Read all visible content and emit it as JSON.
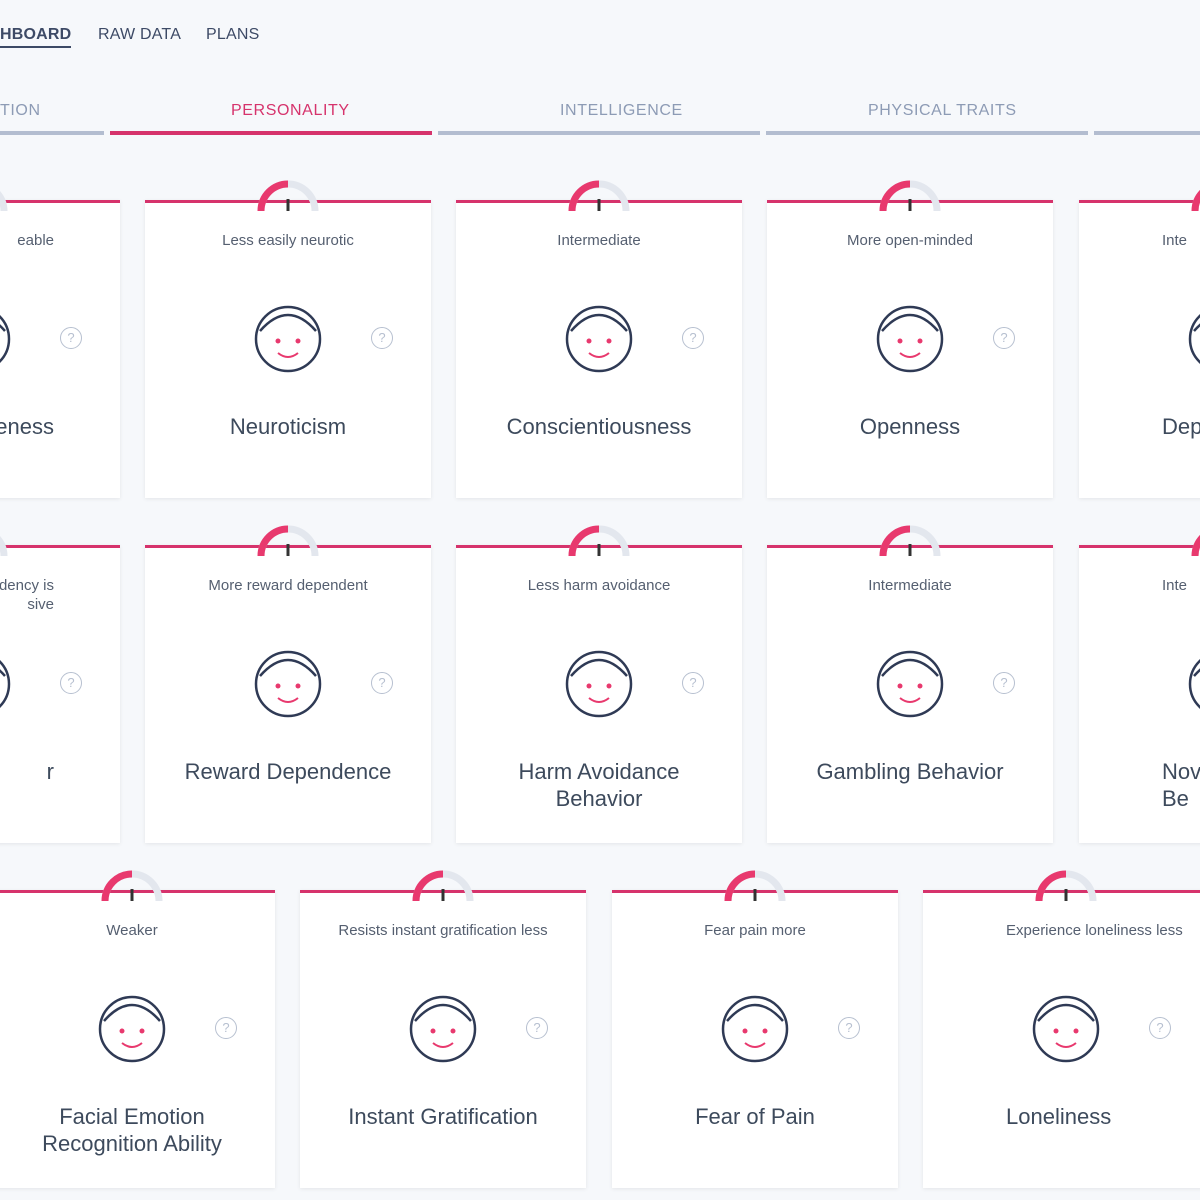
{
  "nav": {
    "items": [
      "HBOARD",
      "RAW DATA",
      "PLANS"
    ]
  },
  "tabs": [
    "TION",
    "PERSONALITY",
    "INTELLIGENCE",
    "PHYSICAL TRAITS"
  ],
  "help_label": "?",
  "rows": [
    [
      {
        "status": "eable",
        "title": "eness"
      },
      {
        "status": "Less easily neurotic",
        "title": "Neuroticism"
      },
      {
        "status": "Intermediate",
        "title": "Conscientiousness"
      },
      {
        "status": "More open-minded",
        "title": "Openness"
      },
      {
        "status": "Inte",
        "title": "Dep"
      }
    ],
    [
      {
        "status": "ndency is\nsive",
        "title": "r"
      },
      {
        "status": "More reward dependent",
        "title": "Reward Dependence"
      },
      {
        "status": "Less harm avoidance",
        "title": "Harm Avoidance\nBehavior"
      },
      {
        "status": "Intermediate",
        "title": "Gambling Behavior"
      },
      {
        "status": "Inte",
        "title": "Novelt\nBe"
      }
    ],
    [
      {
        "status": "Weaker",
        "title": "Facial Emotion\nRecognition Ability"
      },
      {
        "status": "Resists instant gratification less",
        "title": "Instant Gratification"
      },
      {
        "status": "Fear pain more",
        "title": "Fear of Pain"
      },
      {
        "status": "Experience loneliness less",
        "title": "Loneliness"
      }
    ]
  ]
}
